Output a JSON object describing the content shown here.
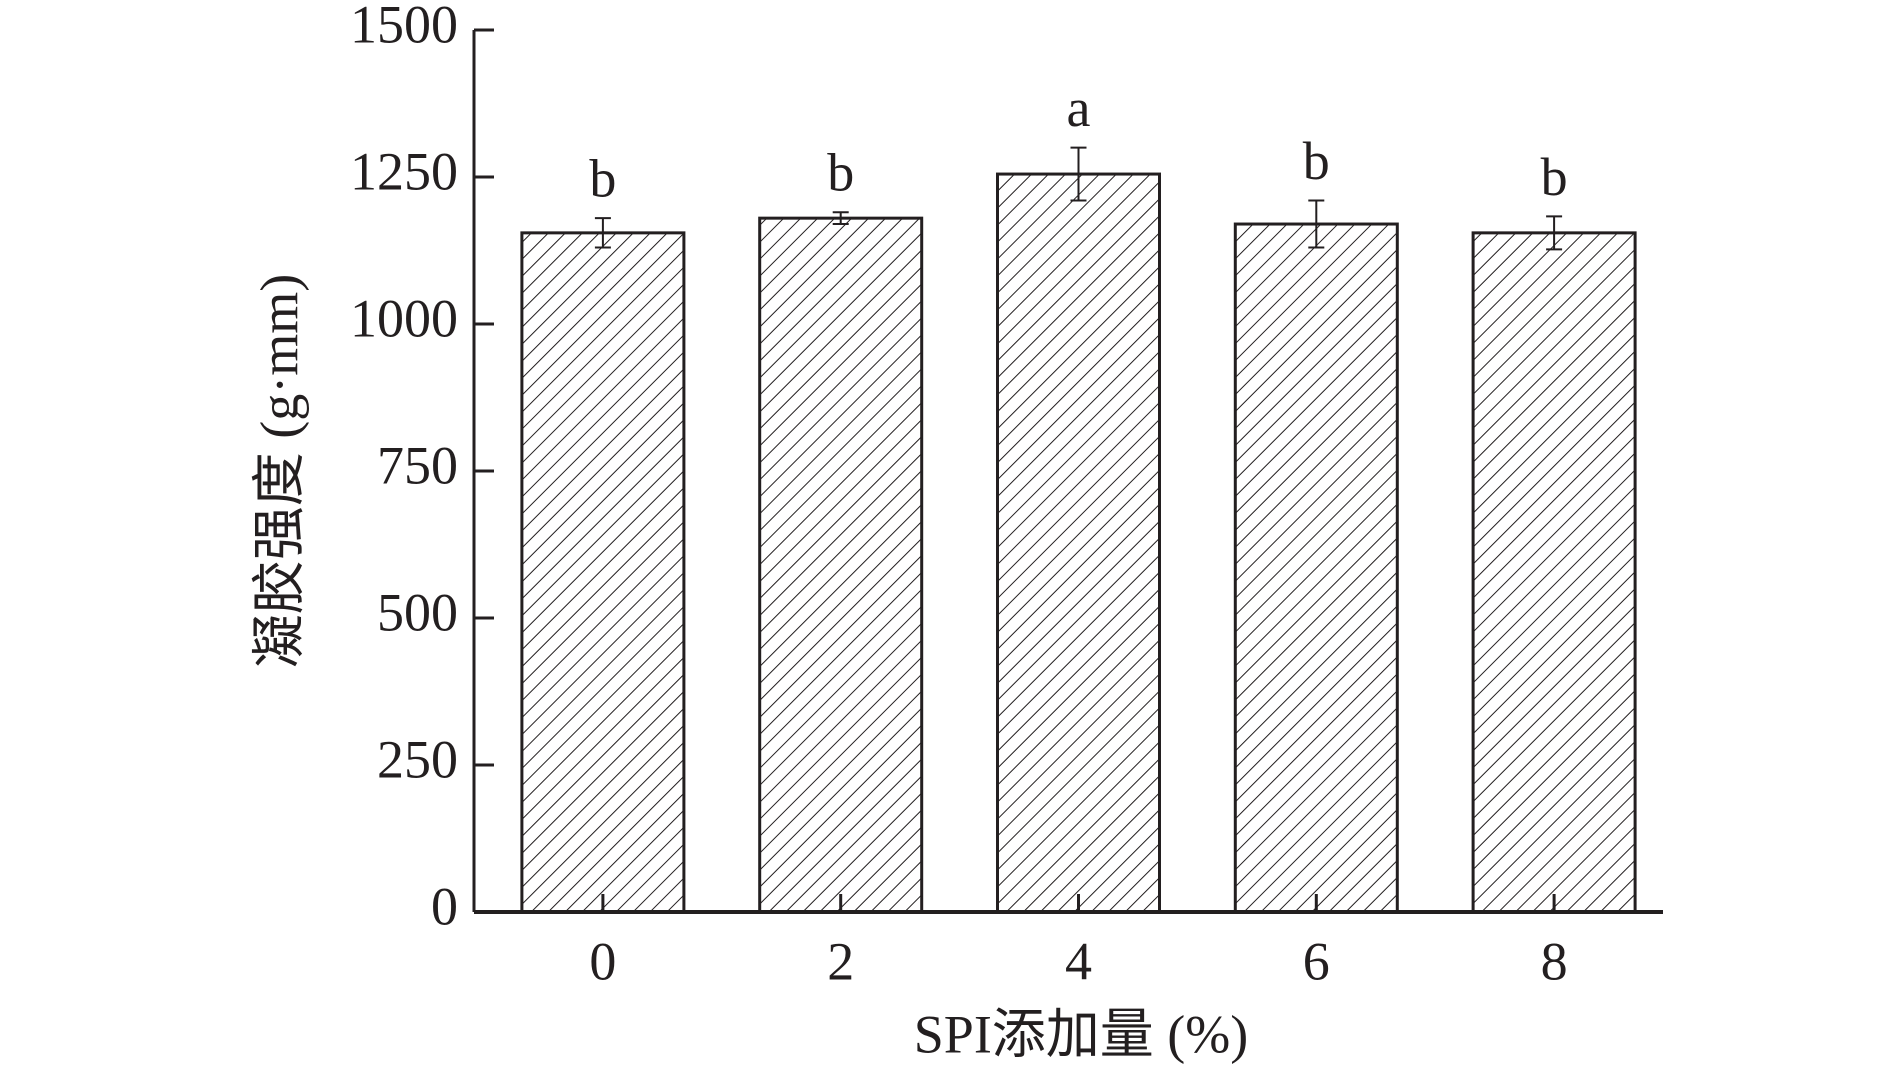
{
  "chart_data": {
    "type": "bar",
    "x_label": "SPI添加量 (%)",
    "y_label": "凝胶强度 (g·mm)",
    "categories": [
      "0",
      "2",
      "4",
      "6",
      "8"
    ],
    "values": [
      1155,
      1180,
      1255,
      1170,
      1155
    ],
    "errors": [
      25,
      10,
      45,
      40,
      28
    ],
    "annotations": [
      "b",
      "b",
      "a",
      "b",
      "b"
    ],
    "color": "#231f20",
    "ylim": [
      0,
      1500
    ],
    "yticks": [
      0,
      250,
      500,
      750,
      1000,
      1250,
      1500
    ]
  }
}
